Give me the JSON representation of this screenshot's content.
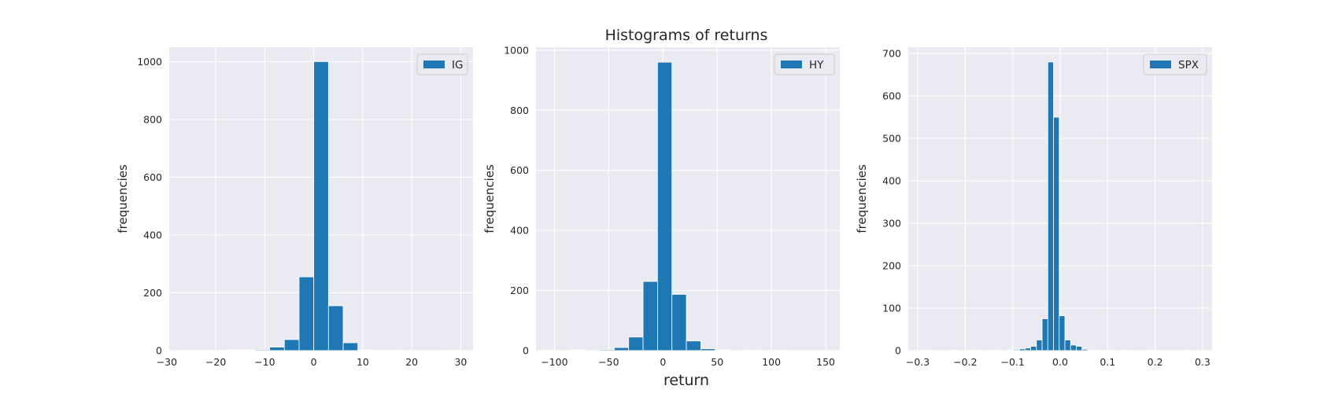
{
  "figure": {
    "title": "Histograms of returns",
    "xlabel": "return",
    "bar_color": "#1f77b4",
    "plot_bg": "#eaeaf2",
    "grid_color": "#ffffff"
  },
  "chart_data": [
    {
      "type": "bar",
      "legend": "IG",
      "legend_position": "top-right",
      "ylabel": "frequencies",
      "grid": true,
      "xlim": [
        -29.5,
        32.5
      ],
      "ylim": [
        0,
        1050
      ],
      "xticks": [
        -30,
        -20,
        -10,
        0,
        10,
        20,
        30
      ],
      "yticks": [
        0,
        200,
        400,
        600,
        800,
        1000
      ],
      "bins": [
        {
          "x0": -27.0,
          "x1": -24.0,
          "value": 1
        },
        {
          "x0": -24.0,
          "x1": -21.0,
          "value": 1
        },
        {
          "x0": -21.0,
          "x1": -18.0,
          "value": 1
        },
        {
          "x0": -18.0,
          "x1": -15.0,
          "value": 2
        },
        {
          "x0": -15.0,
          "x1": -12.0,
          "value": 2
        },
        {
          "x0": -12.0,
          "x1": -9.0,
          "value": 3
        },
        {
          "x0": -9.0,
          "x1": -6.0,
          "value": 12
        },
        {
          "x0": -6.0,
          "x1": -3.0,
          "value": 38
        },
        {
          "x0": -3.0,
          "x1": 0.0,
          "value": 255
        },
        {
          "x0": 0.0,
          "x1": 3.0,
          "value": 1000
        },
        {
          "x0": 3.0,
          "x1": 6.0,
          "value": 155
        },
        {
          "x0": 6.0,
          "x1": 9.0,
          "value": 27
        },
        {
          "x0": 9.0,
          "x1": 12.0,
          "value": 2
        },
        {
          "x0": 12.0,
          "x1": 15.0,
          "value": 1
        },
        {
          "x0": 15.0,
          "x1": 18.0,
          "value": 1
        },
        {
          "x0": 27.0,
          "x1": 30.0,
          "value": 1
        }
      ]
    },
    {
      "type": "bar",
      "legend": "HY",
      "legend_position": "top-right",
      "ylabel": "frequencies",
      "grid": true,
      "xlim": [
        -117,
        163
      ],
      "ylim": [
        0,
        1010
      ],
      "xticks": [
        -100,
        -50,
        0,
        50,
        100,
        150
      ],
      "yticks": [
        0,
        200,
        400,
        600,
        800,
        1000
      ],
      "bins": [
        {
          "x0": -111.4,
          "x1": -98.1,
          "value": 1
        },
        {
          "x0": -84.8,
          "x1": -71.5,
          "value": 2
        },
        {
          "x0": -58.2,
          "x1": -44.9,
          "value": 3
        },
        {
          "x0": -44.9,
          "x1": -31.6,
          "value": 10
        },
        {
          "x0": -31.6,
          "x1": -18.3,
          "value": 45
        },
        {
          "x0": -18.3,
          "x1": -5.0,
          "value": 230
        },
        {
          "x0": -5.0,
          "x1": 8.3,
          "value": 960
        },
        {
          "x0": 8.3,
          "x1": 21.6,
          "value": 187
        },
        {
          "x0": 21.6,
          "x1": 34.9,
          "value": 32
        },
        {
          "x0": 34.9,
          "x1": 48.2,
          "value": 6
        },
        {
          "x0": 48.2,
          "x1": 61.5,
          "value": 2
        },
        {
          "x0": 74.8,
          "x1": 88.1,
          "value": 1
        },
        {
          "x0": 101.4,
          "x1": 114.7,
          "value": 1
        }
      ]
    },
    {
      "type": "bar",
      "legend": "SPX",
      "legend_position": "top-right",
      "ylabel": "frequencies",
      "grid": true,
      "xlim": [
        -0.32,
        0.32
      ],
      "ylim": [
        0,
        715
      ],
      "xticks": [
        -0.3,
        -0.2,
        -0.1,
        0.0,
        0.1,
        0.2,
        0.3
      ],
      "yticks": [
        0,
        100,
        200,
        300,
        400,
        500,
        600,
        700
      ],
      "bins": [
        {
          "x0": -0.29,
          "x1": -0.278,
          "value": 1
        },
        {
          "x0": -0.23,
          "x1": -0.218,
          "value": 1
        },
        {
          "x0": -0.182,
          "x1": -0.17,
          "value": 1
        },
        {
          "x0": -0.146,
          "x1": -0.134,
          "value": 1
        },
        {
          "x0": -0.11,
          "x1": -0.098,
          "value": 1
        },
        {
          "x0": -0.098,
          "x1": -0.086,
          "value": 2
        },
        {
          "x0": -0.086,
          "x1": -0.074,
          "value": 4
        },
        {
          "x0": -0.074,
          "x1": -0.062,
          "value": 6
        },
        {
          "x0": -0.062,
          "x1": -0.05,
          "value": 10
        },
        {
          "x0": -0.05,
          "x1": -0.038,
          "value": 25
        },
        {
          "x0": -0.038,
          "x1": -0.026,
          "value": 75
        },
        {
          "x0": -0.026,
          "x1": -0.014,
          "value": 680
        },
        {
          "x0": -0.014,
          "x1": -0.002,
          "value": 550
        },
        {
          "x0": -0.002,
          "x1": 0.01,
          "value": 82
        },
        {
          "x0": 0.01,
          "x1": 0.022,
          "value": 25
        },
        {
          "x0": 0.022,
          "x1": 0.034,
          "value": 13
        },
        {
          "x0": 0.034,
          "x1": 0.046,
          "value": 10
        },
        {
          "x0": 0.046,
          "x1": 0.058,
          "value": 3
        },
        {
          "x0": 0.07,
          "x1": 0.082,
          "value": 1
        },
        {
          "x0": 0.094,
          "x1": 0.106,
          "value": 1
        },
        {
          "x0": 0.13,
          "x1": 0.142,
          "value": 1
        },
        {
          "x0": 0.19,
          "x1": 0.202,
          "value": 1
        },
        {
          "x0": 0.262,
          "x1": 0.274,
          "value": 1
        }
      ]
    }
  ]
}
